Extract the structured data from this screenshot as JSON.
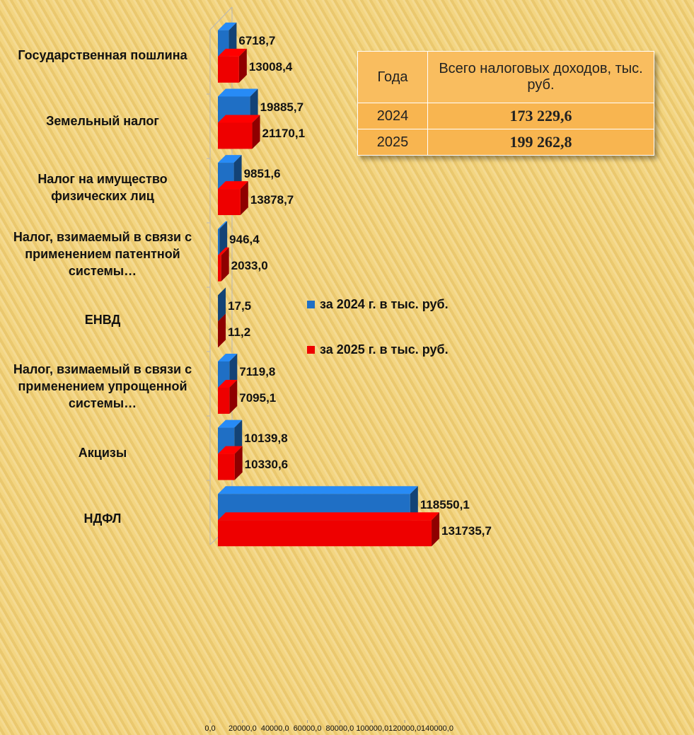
{
  "chart_data": {
    "type": "bar",
    "orientation": "horizontal",
    "categories": [
      "Государственная пошлина",
      "Земельный налог",
      "Налог на имущество физических лиц",
      "Налог, взимаемый в связи с применением патентной системы…",
      "ЕНВД",
      "Налог, взимаемый в связи с применением упрощенной системы…",
      "Акцизы",
      "НДФЛ"
    ],
    "series": [
      {
        "name": "за 2024 г. в тыс. руб.",
        "color": "#1f6fc5",
        "values": [
          6718.7,
          19885.7,
          9851.6,
          946.4,
          17.5,
          7119.8,
          10139.8,
          118550.1
        ],
        "value_labels": [
          "6718,7",
          "19885,7",
          "9851,6",
          "946,4",
          "17,5",
          "7119,8",
          "10139,8",
          "118550,1"
        ]
      },
      {
        "name": "за 2025 г. в тыс. руб.",
        "color": "#ee0000",
        "values": [
          13008.4,
          21170.1,
          13878.7,
          2033.0,
          11.2,
          7095.1,
          10330.6,
          131735.7
        ],
        "value_labels": [
          "13008,4",
          "21170,1",
          "13878,7",
          "2033,0",
          "11,2",
          "7095,1",
          "10330,6",
          "131735,7"
        ]
      }
    ],
    "xlim": [
      0,
      140000
    ],
    "xticks": [
      {
        "value": 0,
        "label": "0,0"
      },
      {
        "value": 20000,
        "label": "20000,0"
      },
      {
        "value": 40000,
        "label": "40000,0"
      },
      {
        "value": 60000,
        "label": "60000,0"
      },
      {
        "value": 80000,
        "label": "80000,0"
      },
      {
        "value": 100000,
        "label": "100000,0"
      },
      {
        "value": 120000,
        "label": "120000,0"
      },
      {
        "value": 140000,
        "label": "140000,0"
      }
    ],
    "grid": false
  },
  "table": {
    "headers": [
      "Года",
      "Всего налоговых доходов, тыс. руб."
    ],
    "rows": [
      [
        "2024",
        "173 229,6"
      ],
      [
        "2025",
        "199 262,8"
      ]
    ]
  }
}
